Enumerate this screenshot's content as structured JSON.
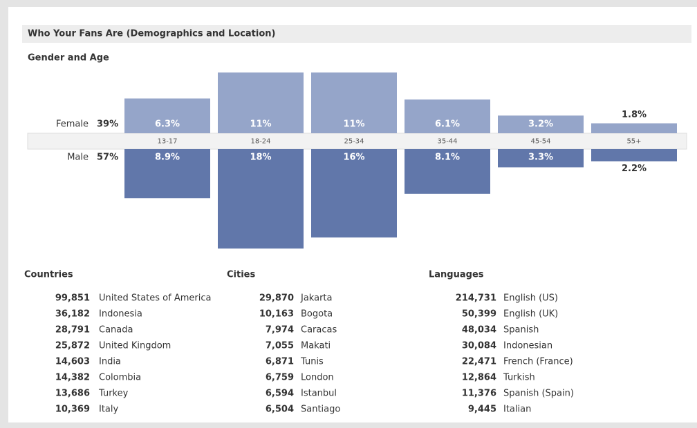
{
  "header": {
    "title": "Who Your Fans Are (Demographics and Location)"
  },
  "chart_data": {
    "type": "bar",
    "title": "Gender and Age",
    "categories": [
      "13-17",
      "18-24",
      "25-34",
      "35-44",
      "45-54",
      "55+"
    ],
    "series": [
      {
        "name": "Female",
        "total": 39,
        "total_label": "39%",
        "color": "#95a5c9",
        "values": [
          6.3,
          11,
          11,
          6.1,
          3.2,
          1.8
        ],
        "value_labels": [
          "6.3%",
          "11%",
          "11%",
          "6.1%",
          "3.2%",
          "1.8%"
        ]
      },
      {
        "name": "Male",
        "total": 57,
        "total_label": "57%",
        "color": "#6177aa",
        "values": [
          8.9,
          18,
          16,
          8.1,
          3.3,
          2.2
        ],
        "value_labels": [
          "8.9%",
          "18%",
          "16%",
          "8.1%",
          "3.3%",
          "2.2%"
        ]
      }
    ]
  },
  "lists": [
    {
      "title": "Countries",
      "rows": [
        [
          "99,851",
          "United States of America"
        ],
        [
          "36,182",
          "Indonesia"
        ],
        [
          "28,791",
          "Canada"
        ],
        [
          "25,872",
          "United Kingdom"
        ],
        [
          "14,603",
          "India"
        ],
        [
          "14,382",
          "Colombia"
        ],
        [
          "13,686",
          "Turkey"
        ],
        [
          "10,369",
          "Italy"
        ]
      ]
    },
    {
      "title": "Cities",
      "rows": [
        [
          "29,870",
          "Jakarta"
        ],
        [
          "10,163",
          "Bogota"
        ],
        [
          "7,974",
          "Caracas"
        ],
        [
          "7,055",
          "Makati"
        ],
        [
          "6,871",
          "Tunis"
        ],
        [
          "6,759",
          "London"
        ],
        [
          "6,594",
          "Istanbul"
        ],
        [
          "6,504",
          "Santiago"
        ]
      ]
    },
    {
      "title": "Languages",
      "rows": [
        [
          "214,731",
          "English (US)"
        ],
        [
          "50,399",
          "English (UK)"
        ],
        [
          "48,034",
          "Spanish"
        ],
        [
          "30,084",
          "Indonesian"
        ],
        [
          "22,471",
          "French (France)"
        ],
        [
          "12,864",
          "Turkish"
        ],
        [
          "11,376",
          "Spanish (Spain)"
        ],
        [
          "9,445",
          "Italian"
        ]
      ]
    }
  ]
}
